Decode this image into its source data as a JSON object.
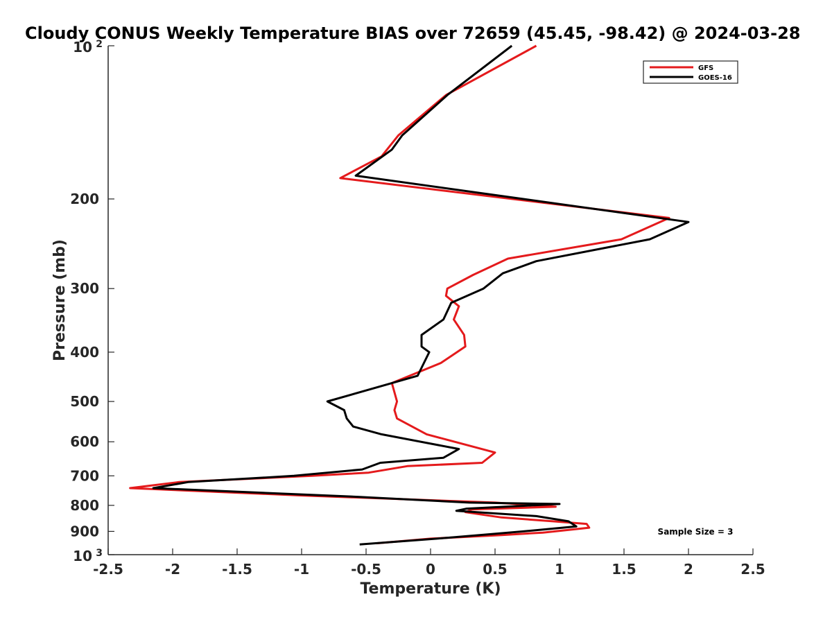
{
  "chart_data": {
    "type": "line",
    "title": "Cloudy CONUS Weekly Temperature BIAS over 72659 (45.45, -98.42) @ 2024-03-28",
    "xlabel": "Temperature (K)",
    "ylabel": "Pressure (mb)",
    "xlim": [
      -2.5,
      2.5
    ],
    "ylim": [
      100,
      1000
    ],
    "y_scale": "log",
    "y_reversed": true,
    "grid": false,
    "legend_position": "top-right",
    "x_ticks": [
      -2.5,
      -2,
      -1.5,
      -1,
      -0.5,
      0,
      0.5,
      1,
      1.5,
      2,
      2.5
    ],
    "x_tick_labels": [
      "-2.5",
      "-2",
      "-1.5",
      "-1",
      "-0.5",
      "0",
      "0.5",
      "1",
      "1.5",
      "2",
      "2.5"
    ],
    "y_ticks": [
      100,
      200,
      300,
      400,
      500,
      600,
      700,
      800,
      900,
      1000
    ],
    "y_tick_labels": [
      {
        "base": "10",
        "exp": "2"
      },
      {
        "text": "200"
      },
      {
        "text": "300"
      },
      {
        "text": "400"
      },
      {
        "text": "500"
      },
      {
        "text": "600"
      },
      {
        "text": "700"
      },
      {
        "text": "800"
      },
      {
        "text": "900"
      },
      {
        "base": "10",
        "exp": "3"
      }
    ],
    "series": [
      {
        "name": "GFS",
        "color": "#e41a1c",
        "x": [
          0.82,
          0.12,
          -0.25,
          -0.38,
          -0.7,
          1.85,
          1.48,
          0.6,
          0.33,
          0.13,
          0.12,
          0.22,
          0.18,
          0.26,
          0.27,
          0.08,
          -0.3,
          -0.26,
          -0.28,
          -0.26,
          -0.03,
          0.5,
          0.4,
          -0.18,
          -0.48,
          -0.92,
          -1.95,
          -2.33,
          -1.0,
          0.5,
          0.97,
          0.32,
          0.27,
          0.55,
          0.95,
          1.21,
          1.23,
          0.87,
          0.55,
          0.0,
          -0.42
        ],
        "y": [
          100,
          125,
          150,
          165,
          182,
          218,
          240,
          262,
          282,
          300,
          310,
          325,
          345,
          370,
          390,
          420,
          460,
          500,
          520,
          540,
          580,
          630,
          660,
          670,
          690,
          700,
          720,
          740,
          765,
          790,
          805,
          815,
          825,
          845,
          860,
          870,
          885,
          905,
          915,
          930,
          950
        ]
      },
      {
        "name": "GOES-16",
        "color": "#000000",
        "x": [
          0.63,
          0.13,
          -0.22,
          -0.3,
          -0.58,
          2.0,
          1.7,
          0.82,
          0.56,
          0.41,
          0.16,
          0.1,
          -0.07,
          -0.07,
          -0.01,
          -0.1,
          -0.8,
          -0.67,
          -0.65,
          -0.6,
          -0.38,
          0.22,
          0.1,
          -0.39,
          -0.53,
          -1.06,
          -1.88,
          -2.15,
          -0.55,
          0.3,
          1.0,
          0.28,
          0.2,
          0.82,
          1.07,
          1.13,
          0.72,
          0.5,
          0.05,
          -0.55
        ],
        "y": [
          100,
          125,
          150,
          160,
          180,
          222,
          240,
          265,
          280,
          300,
          320,
          345,
          370,
          390,
          400,
          445,
          500,
          520,
          540,
          560,
          580,
          620,
          645,
          660,
          680,
          700,
          720,
          740,
          770,
          790,
          795,
          812,
          820,
          840,
          860,
          880,
          900,
          910,
          930,
          955
        ]
      }
    ]
  },
  "annotation": "Sample Size = 3"
}
